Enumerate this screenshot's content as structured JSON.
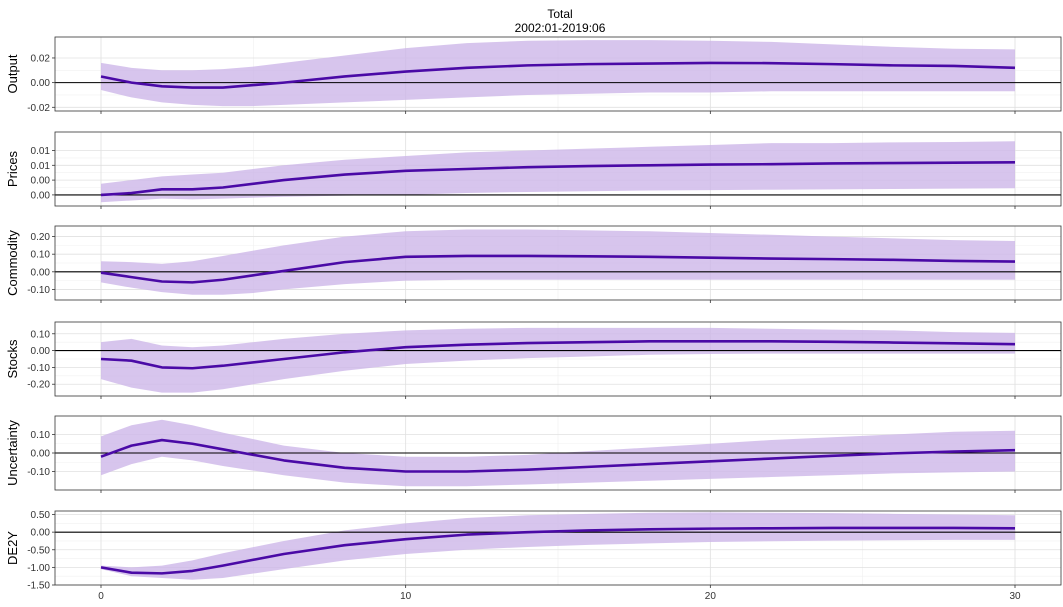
{
  "title": "Total",
  "subtitle": "2002:01-2019:06",
  "colors": {
    "line": "#4a0aa6",
    "band": "#cdb6e8",
    "zero": "#000000",
    "grid_major": "#e0e0e0",
    "grid_minor": "#f0f0f0",
    "frame": "#333333"
  },
  "chart_data": {
    "type": "line",
    "x_ticks": [
      0,
      10,
      20,
      30
    ],
    "x_tick_labels": [
      "0",
      "10",
      "20",
      "30"
    ],
    "xlim": [
      0,
      30
    ],
    "grid": true,
    "legend": "none",
    "panels": [
      {
        "label": "Output",
        "ylim": [
          -0.023,
          0.037
        ],
        "y_ticks": [
          -0.02,
          0.0,
          0.02
        ],
        "y_tick_labels": [
          "-0.02",
          "0.00",
          "0.02"
        ],
        "x": [
          0,
          1,
          2,
          3,
          4,
          5,
          6,
          8,
          10,
          12,
          14,
          16,
          18,
          20,
          22,
          24,
          26,
          28,
          30
        ],
        "median": [
          0.005,
          0.0,
          -0.003,
          -0.004,
          -0.004,
          -0.002,
          0.0,
          0.005,
          0.009,
          0.012,
          0.014,
          0.015,
          0.0155,
          0.016,
          0.0158,
          0.015,
          0.014,
          0.0135,
          0.012
        ],
        "upper": [
          0.016,
          0.012,
          0.01,
          0.01,
          0.011,
          0.013,
          0.016,
          0.022,
          0.028,
          0.032,
          0.034,
          0.0345,
          0.0345,
          0.034,
          0.033,
          0.031,
          0.029,
          0.0275,
          0.027
        ],
        "lower": [
          -0.006,
          -0.012,
          -0.016,
          -0.018,
          -0.019,
          -0.019,
          -0.018,
          -0.016,
          -0.014,
          -0.012,
          -0.01,
          -0.009,
          -0.008,
          -0.008,
          -0.007,
          -0.007,
          -0.007,
          -0.007,
          -0.007
        ]
      },
      {
        "label": "Prices",
        "ylim": [
          -0.003,
          0.017
        ],
        "y_ticks": [
          0.0,
          0.004,
          0.008,
          0.012
        ],
        "y_tick_labels": [
          "0.00",
          "0.00",
          "0.01",
          "0.01"
        ],
        "x": [
          0,
          1,
          2,
          3,
          4,
          6,
          8,
          10,
          12,
          14,
          16,
          18,
          20,
          22,
          24,
          26,
          28,
          30
        ],
        "median": [
          0.0,
          0.0005,
          0.0015,
          0.0015,
          0.002,
          0.004,
          0.0055,
          0.0065,
          0.007,
          0.0075,
          0.0078,
          0.008,
          0.0082,
          0.0083,
          0.0085,
          0.0086,
          0.0087,
          0.0088
        ],
        "upper": [
          0.003,
          0.004,
          0.005,
          0.0055,
          0.006,
          0.008,
          0.0095,
          0.0105,
          0.0115,
          0.012,
          0.0125,
          0.013,
          0.0135,
          0.014,
          0.014,
          0.0142,
          0.0143,
          0.0145
        ],
        "lower": [
          -0.002,
          -0.0015,
          -0.001,
          -0.0012,
          -0.001,
          -0.0005,
          -0.0002,
          0.0,
          0.0005,
          0.0008,
          0.001,
          0.0012,
          0.0013,
          0.0014,
          0.0015,
          0.0016,
          0.0017,
          0.0018
        ]
      },
      {
        "label": "Commodity",
        "ylim": [
          -0.16,
          0.26
        ],
        "y_ticks": [
          -0.1,
          0.0,
          0.1,
          0.2
        ],
        "y_tick_labels": [
          "-0.10",
          "0.00",
          "0.10",
          "0.20"
        ],
        "x": [
          0,
          1,
          2,
          3,
          4,
          5,
          6,
          8,
          10,
          12,
          14,
          16,
          18,
          20,
          22,
          24,
          26,
          28,
          30
        ],
        "median": [
          -0.005,
          -0.03,
          -0.055,
          -0.06,
          -0.045,
          -0.02,
          0.005,
          0.055,
          0.085,
          0.09,
          0.09,
          0.088,
          0.085,
          0.08,
          0.075,
          0.072,
          0.068,
          0.062,
          0.058
        ],
        "upper": [
          0.06,
          0.055,
          0.045,
          0.06,
          0.09,
          0.12,
          0.15,
          0.2,
          0.23,
          0.24,
          0.24,
          0.235,
          0.23,
          0.22,
          0.21,
          0.2,
          0.19,
          0.18,
          0.175
        ],
        "lower": [
          -0.06,
          -0.09,
          -0.115,
          -0.13,
          -0.13,
          -0.12,
          -0.1,
          -0.07,
          -0.05,
          -0.045,
          -0.045,
          -0.045,
          -0.045,
          -0.045,
          -0.045,
          -0.045,
          -0.045,
          -0.045,
          -0.045
        ]
      },
      {
        "label": "Stocks",
        "ylim": [
          -0.27,
          0.17
        ],
        "y_ticks": [
          -0.2,
          -0.1,
          0.0,
          0.1
        ],
        "y_tick_labels": [
          "-0.20",
          "-0.10",
          "0.00",
          "0.10"
        ],
        "x": [
          0,
          1,
          2,
          3,
          4,
          6,
          8,
          10,
          12,
          14,
          16,
          18,
          20,
          22,
          24,
          26,
          28,
          30
        ],
        "median": [
          -0.05,
          -0.06,
          -0.1,
          -0.105,
          -0.09,
          -0.05,
          -0.01,
          0.02,
          0.035,
          0.045,
          0.05,
          0.055,
          0.055,
          0.055,
          0.052,
          0.048,
          0.043,
          0.038
        ],
        "upper": [
          0.05,
          0.07,
          0.03,
          0.02,
          0.03,
          0.07,
          0.1,
          0.12,
          0.13,
          0.135,
          0.135,
          0.135,
          0.135,
          0.13,
          0.125,
          0.12,
          0.11,
          0.105
        ],
        "lower": [
          -0.17,
          -0.22,
          -0.25,
          -0.25,
          -0.23,
          -0.17,
          -0.12,
          -0.08,
          -0.06,
          -0.045,
          -0.035,
          -0.025,
          -0.02,
          -0.018,
          -0.018,
          -0.018,
          -0.018,
          -0.018
        ]
      },
      {
        "label": "Uncertainty",
        "ylim": [
          -0.2,
          0.2
        ],
        "y_ticks": [
          -0.1,
          0.0,
          0.1
        ],
        "y_tick_labels": [
          "-0.10",
          "0.00",
          "0.10"
        ],
        "x": [
          0,
          1,
          2,
          3,
          4,
          6,
          8,
          10,
          12,
          14,
          16,
          18,
          20,
          22,
          24,
          26,
          28,
          30
        ],
        "median": [
          -0.02,
          0.04,
          0.07,
          0.05,
          0.02,
          -0.04,
          -0.08,
          -0.1,
          -0.1,
          -0.09,
          -0.075,
          -0.06,
          -0.045,
          -0.03,
          -0.015,
          -0.002,
          0.008,
          0.015
        ],
        "upper": [
          0.09,
          0.15,
          0.18,
          0.15,
          0.11,
          0.04,
          0.0,
          -0.02,
          -0.02,
          -0.01,
          0.01,
          0.03,
          0.05,
          0.07,
          0.085,
          0.1,
          0.115,
          0.12
        ],
        "lower": [
          -0.12,
          -0.06,
          -0.02,
          -0.04,
          -0.07,
          -0.12,
          -0.16,
          -0.18,
          -0.18,
          -0.17,
          -0.16,
          -0.15,
          -0.14,
          -0.13,
          -0.12,
          -0.11,
          -0.105,
          -0.1
        ]
      },
      {
        "label": "DE2Y",
        "ylim": [
          -1.5,
          0.6
        ],
        "y_ticks": [
          -1.5,
          -1.0,
          -0.5,
          0.0,
          0.5
        ],
        "y_tick_labels": [
          "-1.50",
          "-1.00",
          "-0.50",
          "0.00",
          "0.50"
        ],
        "x": [
          0,
          1,
          2,
          3,
          4,
          6,
          8,
          10,
          12,
          14,
          16,
          18,
          20,
          22,
          24,
          26,
          28,
          30
        ],
        "median": [
          -1.0,
          -1.15,
          -1.17,
          -1.1,
          -0.95,
          -0.62,
          -0.37,
          -0.2,
          -0.07,
          0.0,
          0.05,
          0.08,
          0.1,
          0.11,
          0.12,
          0.12,
          0.12,
          0.11
        ],
        "upper": [
          -0.95,
          -1.0,
          -0.95,
          -0.8,
          -0.6,
          -0.25,
          0.05,
          0.25,
          0.4,
          0.48,
          0.52,
          0.55,
          0.56,
          0.55,
          0.54,
          0.52,
          0.5,
          0.48
        ],
        "lower": [
          -1.05,
          -1.25,
          -1.3,
          -1.35,
          -1.3,
          -1.05,
          -0.8,
          -0.62,
          -0.5,
          -0.42,
          -0.36,
          -0.32,
          -0.28,
          -0.26,
          -0.24,
          -0.23,
          -0.22,
          -0.22
        ]
      }
    ]
  }
}
